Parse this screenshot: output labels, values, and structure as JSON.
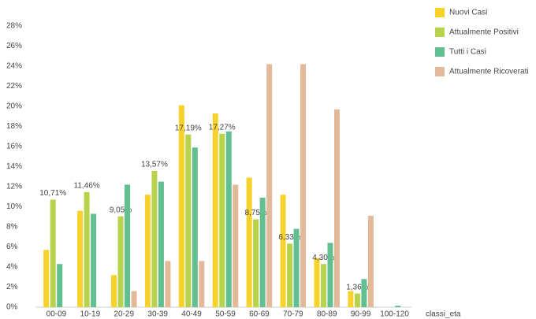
{
  "chart_data": {
    "type": "bar",
    "x_label": "classi_eta",
    "categories": [
      "00-09",
      "10-19",
      "20-29",
      "30-39",
      "40-49",
      "50-59",
      "60-69",
      "70-79",
      "80-89",
      "90-99",
      "100-120"
    ],
    "series": [
      {
        "name": "Nuovi Casi",
        "color": "#f7d22c",
        "values": [
          5.7,
          9.6,
          3.2,
          11.2,
          20.1,
          19.3,
          12.9,
          11.2,
          4.9,
          1.6,
          0
        ]
      },
      {
        "name": "Attualmente Positivi",
        "color": "#b7d34b",
        "values": [
          10.71,
          11.46,
          9.05,
          13.57,
          17.19,
          17.27,
          8.75,
          6.33,
          4.3,
          1.36,
          0
        ],
        "value_labels": [
          "10,71%",
          "11,46%",
          "9,05%",
          "13,57%",
          "17,19%",
          "17,27%",
          "8,75%",
          "6,33%",
          "4,30%",
          "1,36%",
          null
        ]
      },
      {
        "name": "Tutti i Casi",
        "color": "#62bf8f",
        "values": [
          4.3,
          9.3,
          12.2,
          12.5,
          15.9,
          17.5,
          10.9,
          7.8,
          6.4,
          2.8,
          0.15
        ]
      },
      {
        "name": "Attualmente Ricoverati",
        "color": "#e4b99a",
        "values": [
          0,
          0,
          1.6,
          4.6,
          4.6,
          12.2,
          24.2,
          24.2,
          19.7,
          9.1,
          0
        ]
      }
    ],
    "ylim": [
      0,
      28
    ],
    "yticks": [
      {
        "value": 0,
        "label": "0%"
      },
      {
        "value": 2,
        "label": "2%"
      },
      {
        "value": 4,
        "label": "4%"
      },
      {
        "value": 6,
        "label": "6%"
      },
      {
        "value": 8,
        "label": "8%"
      },
      {
        "value": 10,
        "label": "10%"
      },
      {
        "value": 12,
        "label": "12%"
      },
      {
        "value": 14,
        "label": "14%"
      },
      {
        "value": 16,
        "label": "16%"
      },
      {
        "value": 18,
        "label": "18%"
      },
      {
        "value": 20,
        "label": "20%"
      },
      {
        "value": 22,
        "label": "22%"
      },
      {
        "value": 24,
        "label": "24%"
      },
      {
        "value": 26,
        "label": "26%"
      },
      {
        "value": 28,
        "label": "28%"
      }
    ],
    "grid": false
  }
}
